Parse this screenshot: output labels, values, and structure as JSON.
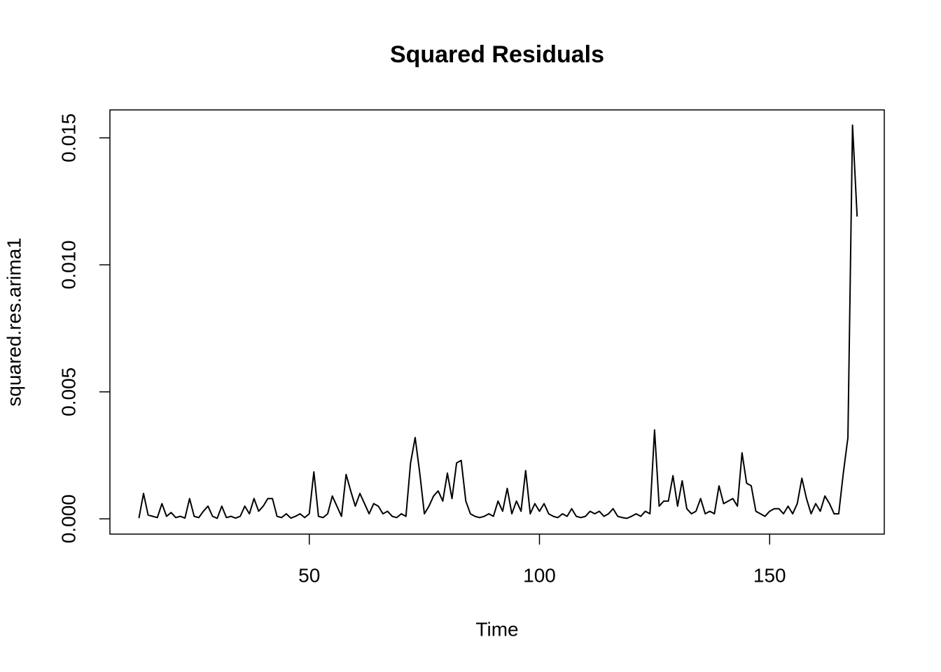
{
  "chart_data": {
    "type": "line",
    "title": "Squared Residuals",
    "x_label": "Time",
    "y_label": "squared.res.arima1",
    "x": [
      13,
      14,
      15,
      16,
      17,
      18,
      19,
      20,
      21,
      22,
      23,
      24,
      25,
      26,
      27,
      28,
      29,
      30,
      31,
      32,
      33,
      34,
      35,
      36,
      37,
      38,
      39,
      40,
      41,
      42,
      43,
      44,
      45,
      46,
      47,
      48,
      49,
      50,
      51,
      52,
      53,
      54,
      55,
      56,
      57,
      58,
      59,
      60,
      61,
      62,
      63,
      64,
      65,
      66,
      67,
      68,
      69,
      70,
      71,
      72,
      73,
      74,
      75,
      76,
      77,
      78,
      79,
      80,
      81,
      82,
      83,
      84,
      85,
      86,
      87,
      88,
      89,
      90,
      91,
      92,
      93,
      94,
      95,
      96,
      97,
      98,
      99,
      100,
      101,
      102,
      103,
      104,
      105,
      106,
      107,
      108,
      109,
      110,
      111,
      112,
      113,
      114,
      115,
      116,
      117,
      118,
      119,
      120,
      121,
      122,
      123,
      124,
      125,
      126,
      127,
      128,
      129,
      130,
      131,
      132,
      133,
      134,
      135,
      136,
      137,
      138,
      139,
      140,
      141,
      142,
      143,
      144,
      145,
      146,
      147,
      148,
      149,
      150,
      151,
      152,
      153,
      154,
      155,
      156,
      157,
      158,
      159,
      160,
      161,
      162,
      163,
      164,
      165,
      166,
      167,
      168,
      169
    ],
    "series": [
      {
        "name": "squared.res.arima1",
        "color": "#000000",
        "values": [
          3e-05,
          0.001,
          0.00015,
          0.0001,
          5e-05,
          0.0006,
          0.0001,
          0.00025,
          5e-05,
          0.0001,
          3e-05,
          0.0008,
          0.0001,
          5e-05,
          0.0003,
          0.0005,
          0.0001,
          2e-05,
          0.0005,
          5e-05,
          0.0001,
          3e-05,
          0.0001,
          0.0005,
          0.0002,
          0.0008,
          0.0003,
          0.0005,
          0.0008,
          0.0008,
          0.0001,
          5e-05,
          0.0002,
          3e-05,
          0.0001,
          0.0002,
          5e-05,
          0.0002,
          0.00185,
          0.0001,
          5e-05,
          0.0002,
          0.0009,
          0.0005,
          0.0001,
          0.00175,
          0.0011,
          0.0005,
          0.001,
          0.0006,
          0.0002,
          0.0006,
          0.0005,
          0.0002,
          0.0003,
          0.0001,
          5e-05,
          0.0002,
          0.0001,
          0.0022,
          0.0032,
          0.0018,
          0.0002,
          0.0005,
          0.0009,
          0.0011,
          0.0007,
          0.0018,
          0.0008,
          0.0022,
          0.0023,
          0.0007,
          0.0002,
          0.0001,
          5e-05,
          0.0001,
          0.0002,
          0.0001,
          0.0007,
          0.0003,
          0.0012,
          0.0002,
          0.0007,
          0.0003,
          0.0019,
          0.0002,
          0.0006,
          0.0003,
          0.0006,
          0.0002,
          0.0001,
          5e-05,
          0.0002,
          0.0001,
          0.0004,
          0.0001,
          5e-05,
          0.0001,
          0.0003,
          0.0002,
          0.0003,
          0.0001,
          0.0002,
          0.0004,
          0.0001,
          5e-05,
          2e-05,
          0.0001,
          0.0002,
          0.0001,
          0.0003,
          0.0002,
          0.0035,
          0.0005,
          0.0007,
          0.0007,
          0.0017,
          0.0005,
          0.0015,
          0.0004,
          0.0002,
          0.0003,
          0.0008,
          0.0002,
          0.0003,
          0.0002,
          0.0013,
          0.0006,
          0.0007,
          0.0008,
          0.0005,
          0.0026,
          0.0014,
          0.0013,
          0.0003,
          0.0002,
          0.0001,
          0.0003,
          0.0004,
          0.0004,
          0.0002,
          0.0005,
          0.0002,
          0.0006,
          0.0016,
          0.0008,
          0.0002,
          0.0006,
          0.0003,
          0.0009,
          0.0006,
          0.0002,
          0.0002,
          0.0018,
          0.0032,
          0.0155,
          0.0119
        ]
      }
    ],
    "xlim": [
      6.7,
      174.9
    ],
    "xticks": [
      50,
      100,
      150
    ],
    "ylim": [
      -0.0006,
      0.0161
    ],
    "yticks": [
      {
        "value": 0,
        "label": "0.000"
      },
      0.005,
      {
        "value": 0.01,
        "label": "0.010"
      },
      0.015
    ]
  }
}
